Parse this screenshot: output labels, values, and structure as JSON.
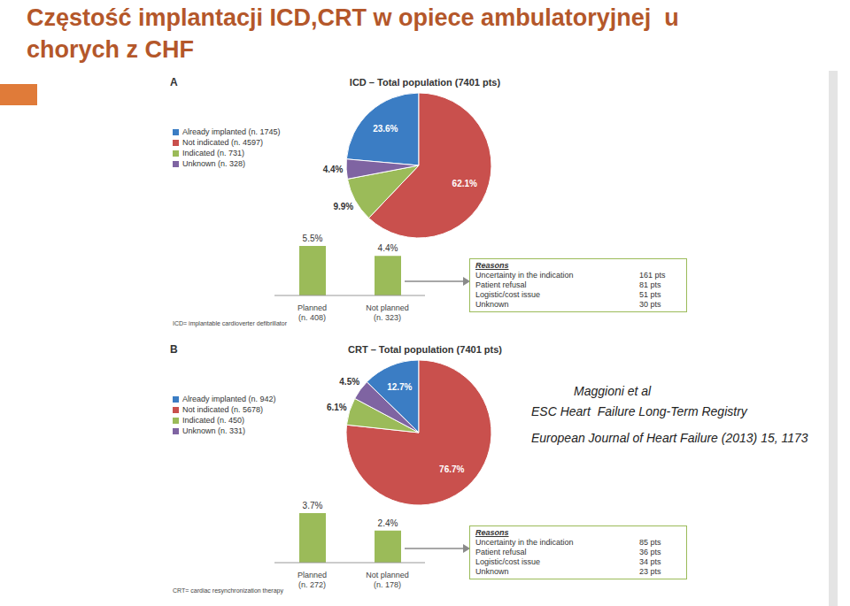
{
  "title": [
    "Częstość implantacji ICD,CRT w opiece ambulatoryjnej  u",
    "chorych z CHF"
  ],
  "citation": [
    "Maggioni et al",
    "ESC Heart  Failure Long-Term Registry",
    "European Journal of Heart Failure (2013) 15, 1173"
  ],
  "chart_data": [
    {
      "type": "pie",
      "panel": "A",
      "title": "ICD – Total population (7401 pts)",
      "categories": [
        "Already implanted (n. 1745)",
        "Not indicated (n. 4597)",
        "Indicated (n. 731)",
        "Unknown (n. 328)"
      ],
      "values": [
        23.6,
        62.1,
        9.9,
        4.4
      ],
      "value_labels": [
        "23.6%",
        "62.1%",
        "9.9%",
        "4.4%"
      ],
      "colors": [
        "#3b7dc4",
        "#c9504d",
        "#9bbb59",
        "#7f64a2"
      ],
      "data_labels": true,
      "legend": "upper left",
      "footnote": "ICD= implantable cardioverter defibrillator"
    },
    {
      "type": "bar",
      "categories": [
        "Planned (n. 408)",
        "Not planned (n. 323)"
      ],
      "values": [
        5.5,
        4.4
      ],
      "value_labels": [
        "5.5%",
        "4.4%"
      ],
      "color": "#9bbb59",
      "data_labels": true,
      "tick_labels": "x",
      "annotations": {
        "title": "Reasons",
        "rows": [
          [
            "Uncertainty in the indication",
            "161 pts"
          ],
          [
            "Patient refusal",
            "81 pts"
          ],
          [
            "Logistic/cost issue",
            "51 pts"
          ],
          [
            "Unknown",
            "30 pts"
          ]
        ]
      }
    },
    {
      "type": "pie",
      "panel": "B",
      "title": "CRT – Total population (7401 pts)",
      "categories": [
        "Already implanted (n. 942)",
        "Not indicated (n. 5678)",
        "Indicated (n. 450)",
        "Unknown (n. 331)"
      ],
      "values": [
        12.7,
        76.7,
        6.1,
        4.5
      ],
      "value_labels": [
        "12.7%",
        "76.7%",
        "6.1%",
        "4.5%"
      ],
      "colors": [
        "#3b7dc4",
        "#c9504d",
        "#9bbb59",
        "#7f64a2"
      ],
      "data_labels": true,
      "legend": "upper left",
      "footnote": "CRT= cardiac resynchronization therapy"
    },
    {
      "type": "bar",
      "categories": [
        "Planned (n. 272)",
        "Not planned (n. 178)"
      ],
      "values": [
        3.7,
        2.4
      ],
      "value_labels": [
        "3.7%",
        "2.4%"
      ],
      "color": "#9bbb59",
      "data_labels": true,
      "tick_labels": "x",
      "annotations": {
        "title": "Reasons",
        "rows": [
          [
            "Uncertainty in the indication",
            "85 pts"
          ],
          [
            "Patient refusal",
            "36 pts"
          ],
          [
            "Logistic/cost issue",
            "34 pts"
          ],
          [
            "Unknown",
            "23 pts"
          ]
        ]
      }
    }
  ]
}
